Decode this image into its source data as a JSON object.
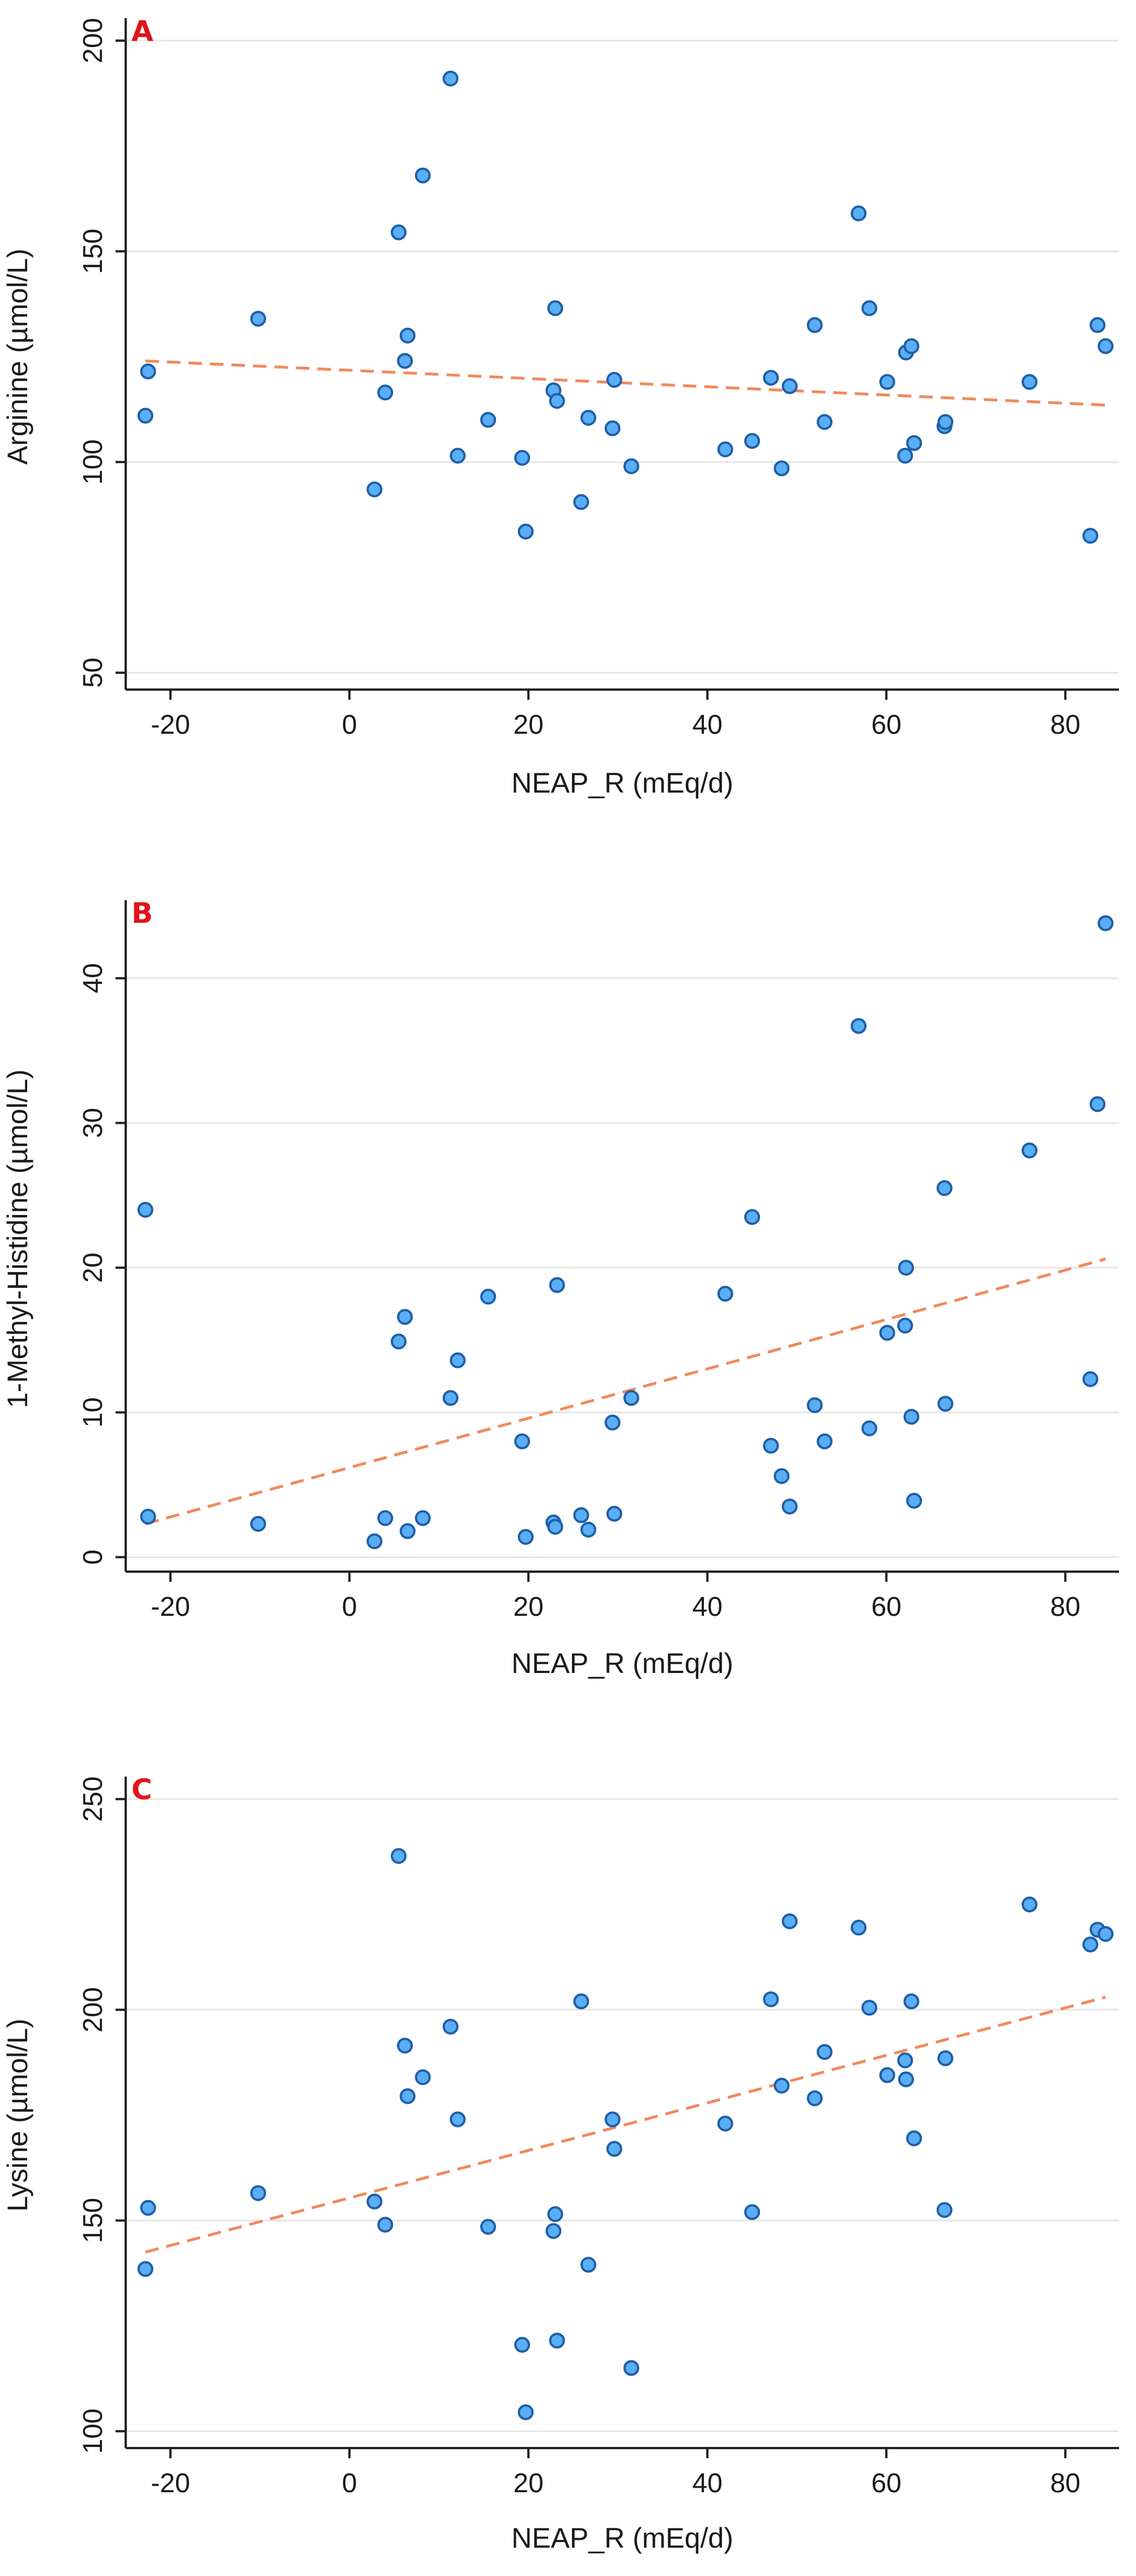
{
  "colors": {
    "point_fill": "#5aaef5",
    "point_stroke": "#1f5fa6",
    "fit_line": "#f08a5d",
    "panel_letter": "#e0151b"
  },
  "chart_data": [
    {
      "type": "scatter",
      "panel_letter": "A",
      "title": "",
      "xlabel": "NEAP_R (mEq/d)",
      "ylabel": "Arginine (µmol/L)",
      "xlim": [
        -25,
        86
      ],
      "ylim": [
        46,
        204
      ],
      "xticks": [
        -20,
        0,
        20,
        40,
        60,
        80
      ],
      "yticks": [
        50,
        100,
        150,
        200
      ],
      "grid": "horizontal",
      "x": [
        -22.8,
        -22.5,
        -10.2,
        2.8,
        4.0,
        5.5,
        6.2,
        6.5,
        8.2,
        11.3,
        12.1,
        15.5,
        19.3,
        19.7,
        22.8,
        23.0,
        23.2,
        25.9,
        26.7,
        29.4,
        29.6,
        31.5,
        42.0,
        45.0,
        47.1,
        48.3,
        49.2,
        52.0,
        53.1,
        56.9,
        58.1,
        60.1,
        62.1,
        62.2,
        62.8,
        63.1,
        66.5,
        66.6,
        76.0,
        82.8,
        83.6,
        84.5
      ],
      "y": [
        111,
        121.5,
        134,
        93.5,
        116.5,
        154.5,
        124,
        130,
        168,
        191,
        101.5,
        110,
        101,
        83.5,
        117,
        136.5,
        114.5,
        90.5,
        110.5,
        108,
        119.5,
        99,
        103,
        105,
        120,
        98.5,
        118,
        132.5,
        109.5,
        159,
        136.5,
        119,
        101.5,
        126,
        127.5,
        104.5,
        108.5,
        109.5,
        119,
        82.5,
        132.5,
        127.5
      ],
      "fit_line": {
        "style": "dashed",
        "x": [
          -22.8,
          84.5
        ],
        "y": [
          124,
          113.5
        ]
      }
    },
    {
      "type": "scatter",
      "panel_letter": "B",
      "title": "",
      "xlabel": "NEAP_R (mEq/d)",
      "ylabel": "1-Methyl-Histidine (µmol/L)",
      "xlim": [
        -25,
        86
      ],
      "ylim": [
        -1,
        45
      ],
      "xticks": [
        -20,
        0,
        20,
        40,
        60,
        80
      ],
      "yticks": [
        0,
        10,
        20,
        30,
        40
      ],
      "grid": "horizontal",
      "x": [
        -22.8,
        -22.5,
        -10.2,
        2.8,
        4.0,
        5.5,
        6.2,
        6.5,
        8.2,
        11.3,
        12.1,
        15.5,
        19.3,
        19.7,
        22.8,
        23.0,
        23.2,
        25.9,
        26.7,
        29.4,
        29.6,
        31.5,
        42.0,
        45.0,
        47.1,
        48.3,
        49.2,
        52.0,
        53.1,
        56.9,
        58.1,
        60.1,
        62.1,
        62.2,
        62.8,
        63.1,
        66.5,
        66.6,
        76.0,
        82.8,
        83.6,
        84.5
      ],
      "y": [
        24,
        2.8,
        2.3,
        1.1,
        2.7,
        14.9,
        16.6,
        1.8,
        2.7,
        11,
        13.6,
        18,
        8,
        1.4,
        2.4,
        2.1,
        18.8,
        2.9,
        1.9,
        9.3,
        3,
        11,
        18.2,
        23.5,
        7.7,
        5.6,
        3.5,
        10.5,
        8,
        36.7,
        8.9,
        15.5,
        16,
        20,
        9.7,
        3.9,
        25.5,
        10.6,
        28.1,
        12.3,
        31.3,
        43.8
      ],
      "fit_line": {
        "style": "dashed",
        "x": [
          -22.8,
          84.5
        ],
        "y": [
          2.3,
          20.6
        ]
      }
    },
    {
      "type": "scatter",
      "panel_letter": "C",
      "title": "",
      "xlabel": "NEAP_R (mEq/d)",
      "ylabel": "Lysine (µmol/L)",
      "xlim": [
        -25,
        86
      ],
      "ylim": [
        96,
        254
      ],
      "xticks": [
        -20,
        0,
        20,
        40,
        60,
        80
      ],
      "yticks": [
        100,
        150,
        200,
        250
      ],
      "grid": "horizontal",
      "x": [
        -22.8,
        -22.5,
        -10.2,
        2.8,
        4.0,
        5.5,
        6.2,
        6.5,
        8.2,
        11.3,
        12.1,
        15.5,
        19.3,
        19.7,
        22.8,
        23.0,
        23.2,
        25.9,
        26.7,
        29.4,
        29.6,
        31.5,
        42.0,
        45.0,
        47.1,
        48.3,
        49.2,
        52.0,
        53.1,
        56.9,
        58.1,
        60.1,
        62.1,
        62.2,
        62.8,
        63.1,
        66.5,
        66.6,
        76.0,
        82.8,
        83.6,
        84.5
      ],
      "y": [
        138.5,
        153,
        156.5,
        154.5,
        149,
        236.5,
        191.5,
        179.5,
        184,
        196,
        174,
        148.5,
        120.5,
        104.5,
        147.5,
        151.5,
        121.5,
        202,
        139.5,
        174,
        167,
        115,
        173,
        152,
        202.5,
        182,
        221,
        179,
        190,
        219.5,
        200.5,
        184.5,
        188,
        183.5,
        202,
        169.5,
        152.5,
        188.5,
        225,
        215.5,
        219,
        218
      ],
      "fit_line": {
        "style": "dashed",
        "x": [
          -22.8,
          84.5
        ],
        "y": [
          142.5,
          203
        ]
      }
    }
  ]
}
